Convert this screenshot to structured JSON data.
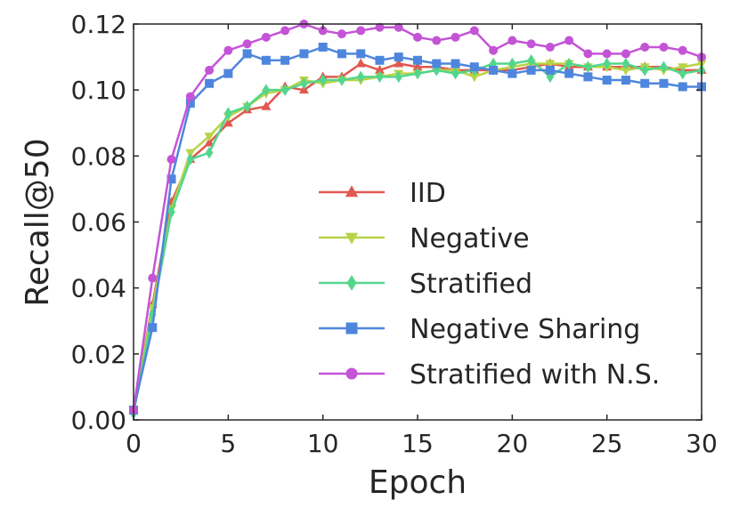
{
  "chart_data": {
    "type": "line",
    "title": "",
    "xlabel": "Epoch",
    "ylabel": "Recall@50",
    "xlim": [
      0,
      30
    ],
    "ylim": [
      0,
      0.12
    ],
    "xticks": [
      "0",
      "5",
      "10",
      "15",
      "20",
      "25",
      "30"
    ],
    "yticks": [
      "0.00",
      "0.02",
      "0.04",
      "0.06",
      "0.08",
      "0.10",
      "0.12"
    ],
    "grid": false,
    "legend_position": "lower-right",
    "x": [
      0,
      1,
      2,
      3,
      4,
      5,
      6,
      7,
      8,
      9,
      10,
      11,
      12,
      13,
      14,
      15,
      16,
      17,
      18,
      19,
      20,
      21,
      22,
      23,
      24,
      25,
      26,
      27,
      28,
      29,
      30
    ],
    "series": [
      {
        "name": "IID",
        "color": "#e0584f",
        "marker": "triangle-up",
        "values": [
          0.003,
          0.035,
          0.066,
          0.079,
          0.084,
          0.09,
          0.094,
          0.095,
          0.101,
          0.1,
          0.104,
          0.104,
          0.108,
          0.106,
          0.108,
          0.107,
          0.107,
          0.106,
          0.106,
          0.106,
          0.106,
          0.107,
          0.108,
          0.107,
          0.107,
          0.107,
          0.107,
          0.107,
          0.107,
          0.106,
          0.106
        ]
      },
      {
        "name": "Negative",
        "color": "#b8d346",
        "marker": "triangle-down",
        "values": [
          0.003,
          0.034,
          0.064,
          0.081,
          0.086,
          0.092,
          0.095,
          0.099,
          0.1,
          0.103,
          0.102,
          0.103,
          0.103,
          0.104,
          0.105,
          0.105,
          0.106,
          0.106,
          0.104,
          0.106,
          0.107,
          0.108,
          0.108,
          0.108,
          0.107,
          0.107,
          0.106,
          0.107,
          0.106,
          0.107,
          0.108
        ]
      },
      {
        "name": "Stratified",
        "color": "#52d68c",
        "marker": "diamond",
        "values": [
          0.002,
          0.032,
          0.063,
          0.079,
          0.081,
          0.093,
          0.095,
          0.1,
          0.1,
          0.102,
          0.103,
          0.103,
          0.104,
          0.104,
          0.104,
          0.105,
          0.106,
          0.105,
          0.106,
          0.108,
          0.108,
          0.109,
          0.104,
          0.108,
          0.107,
          0.108,
          0.108,
          0.106,
          0.107,
          0.105,
          0.106
        ]
      },
      {
        "name": "Negative Sharing",
        "color": "#4f86dd",
        "marker": "square",
        "values": [
          0.003,
          0.028,
          0.073,
          0.096,
          0.102,
          0.105,
          0.111,
          0.109,
          0.109,
          0.111,
          0.113,
          0.111,
          0.111,
          0.109,
          0.11,
          0.109,
          0.108,
          0.108,
          0.107,
          0.106,
          0.105,
          0.106,
          0.106,
          0.105,
          0.104,
          0.103,
          0.103,
          0.102,
          0.102,
          0.101,
          0.101
        ]
      },
      {
        "name": "Stratified with N.S.",
        "color": "#c454d6",
        "marker": "circle",
        "values": [
          0.003,
          0.043,
          0.079,
          0.098,
          0.106,
          0.112,
          0.114,
          0.116,
          0.118,
          0.12,
          0.118,
          0.117,
          0.118,
          0.119,
          0.119,
          0.116,
          0.115,
          0.116,
          0.118,
          0.112,
          0.115,
          0.114,
          0.113,
          0.115,
          0.111,
          0.111,
          0.111,
          0.113,
          0.113,
          0.112,
          0.11
        ]
      }
    ]
  }
}
